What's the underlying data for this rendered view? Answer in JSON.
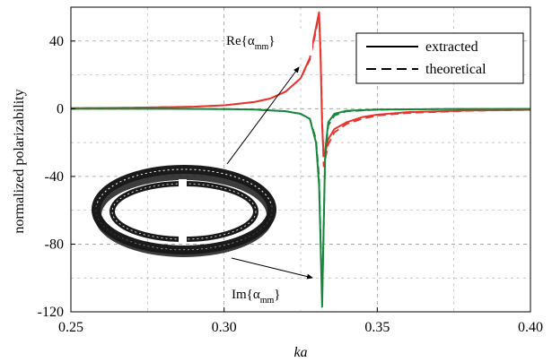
{
  "chart_data": {
    "type": "line",
    "xlabel": "ka",
    "ylabel": "normalized polarizability",
    "xlim": [
      0.25,
      0.4
    ],
    "ylim": [
      -120,
      60
    ],
    "xticks": [
      "0.25",
      "0.30",
      "0.35",
      "0.40"
    ],
    "yticks": [
      "40",
      "0",
      "-40",
      "-80",
      "-120"
    ],
    "grid": "dashed",
    "legend_position": "top-right",
    "legend": [
      {
        "label": "extracted",
        "style": "solid"
      },
      {
        "label": "theoretical",
        "style": "dashed"
      }
    ],
    "annotations": [
      {
        "id": "re",
        "text": "Re{α",
        "sub": "mm",
        "close": "}"
      },
      {
        "id": "im",
        "text": "Im{α",
        "sub": "mm",
        "close": "}"
      }
    ],
    "colors": {
      "real": "#e8322d",
      "imag": "#16863a"
    },
    "series": [
      {
        "part": "real",
        "kind": "extracted",
        "x": [
          0.25,
          0.27,
          0.29,
          0.3,
          0.31,
          0.315,
          0.32,
          0.325,
          0.328,
          0.33,
          0.331,
          0.3315,
          0.332,
          0.3325,
          0.333,
          0.334,
          0.336,
          0.34,
          0.345,
          0.35,
          0.36,
          0.38,
          0.4
        ],
        "y": [
          0.3,
          0.6,
          1.2,
          2,
          4,
          6,
          10,
          18,
          30,
          48,
          57,
          30,
          -10,
          -28,
          -26,
          -18,
          -12,
          -8,
          -5,
          -3.5,
          -2,
          -1,
          -0.6
        ]
      },
      {
        "part": "real",
        "kind": "theoretical",
        "x": [
          0.25,
          0.27,
          0.29,
          0.3,
          0.31,
          0.315,
          0.32,
          0.325,
          0.328,
          0.33,
          0.331,
          0.3315,
          0.332,
          0.3325,
          0.333,
          0.334,
          0.336,
          0.34,
          0.345,
          0.35,
          0.36,
          0.38,
          0.4
        ],
        "y": [
          0.3,
          0.6,
          1.2,
          2,
          4,
          6,
          10,
          18,
          29,
          46,
          56,
          35,
          -5,
          -34,
          -30,
          -21,
          -14,
          -9,
          -6,
          -4,
          -2.5,
          -1.2,
          -0.7
        ]
      },
      {
        "part": "imag",
        "kind": "extracted",
        "x": [
          0.25,
          0.28,
          0.3,
          0.31,
          0.32,
          0.325,
          0.328,
          0.33,
          0.331,
          0.3315,
          0.332,
          0.3325,
          0.333,
          0.334,
          0.336,
          0.34,
          0.35,
          0.37,
          0.4
        ],
        "y": [
          0,
          0,
          -0.2,
          -0.5,
          -1.5,
          -3,
          -6,
          -20,
          -45,
          -80,
          -117,
          -70,
          -25,
          -8,
          -3,
          -1.2,
          -0.5,
          -0.2,
          -0.1
        ]
      },
      {
        "part": "imag",
        "kind": "theoretical",
        "x": [
          0.25,
          0.28,
          0.3,
          0.31,
          0.32,
          0.325,
          0.328,
          0.33,
          0.331,
          0.3315,
          0.332,
          0.3325,
          0.333,
          0.334,
          0.336,
          0.34,
          0.35,
          0.37,
          0.4
        ],
        "y": [
          0,
          0,
          -0.2,
          -0.5,
          -1.5,
          -3,
          -6,
          -18,
          -40,
          -75,
          -112,
          -72,
          -28,
          -10,
          -4,
          -1.5,
          -0.6,
          -0.2,
          -0.1
        ]
      }
    ]
  }
}
